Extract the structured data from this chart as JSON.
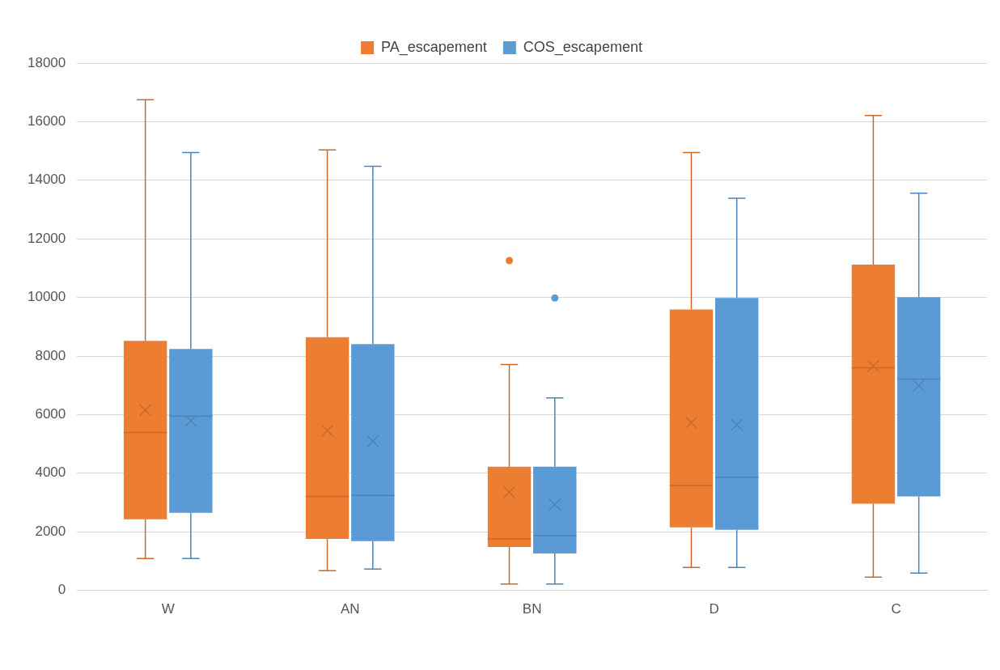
{
  "chart_data": {
    "type": "box",
    "categories": [
      "W",
      "AN",
      "BN",
      "D",
      "C"
    ],
    "series": [
      {
        "name": "PA_escapement",
        "color": "#ed7d31",
        "boxes": [
          {
            "low": 1090,
            "q1": 2430,
            "median": 5390,
            "q3": 8520,
            "high": 16750,
            "mean": 6150
          },
          {
            "low": 670,
            "q1": 1760,
            "median": 3210,
            "q3": 8640,
            "high": 15040,
            "mean": 5450
          },
          {
            "low": 220,
            "q1": 1480,
            "median": 1760,
            "q3": 4220,
            "high": 7710,
            "mean": 3350,
            "outliers": [
              11260
            ]
          },
          {
            "low": 780,
            "q1": 2150,
            "median": 3580,
            "q3": 9590,
            "high": 14950,
            "mean": 5730
          },
          {
            "low": 450,
            "q1": 2960,
            "median": 7600,
            "q3": 11120,
            "high": 16210,
            "mean": 7660
          }
        ]
      },
      {
        "name": "COS_escapement",
        "color": "#5b9bd5",
        "boxes": [
          {
            "low": 1090,
            "q1": 2650,
            "median": 5950,
            "q3": 8240,
            "high": 14950,
            "mean": 5790
          },
          {
            "low": 730,
            "q1": 1680,
            "median": 3240,
            "q3": 8410,
            "high": 14480,
            "mean": 5090
          },
          {
            "low": 220,
            "q1": 1260,
            "median": 1870,
            "q3": 4220,
            "high": 6570,
            "mean": 2930,
            "outliers": [
              9980
            ]
          },
          {
            "low": 780,
            "q1": 2070,
            "median": 3860,
            "q3": 9980,
            "high": 13390,
            "mean": 5650
          },
          {
            "low": 590,
            "q1": 3210,
            "median": 7210,
            "q3": 10010,
            "high": 13560,
            "mean": 6990
          }
        ]
      }
    ],
    "ylim": [
      0,
      18000
    ],
    "yticks": [
      0,
      2000,
      4000,
      6000,
      8000,
      10000,
      12000,
      14000,
      16000,
      18000
    ],
    "grid": "y",
    "legend": "top"
  }
}
